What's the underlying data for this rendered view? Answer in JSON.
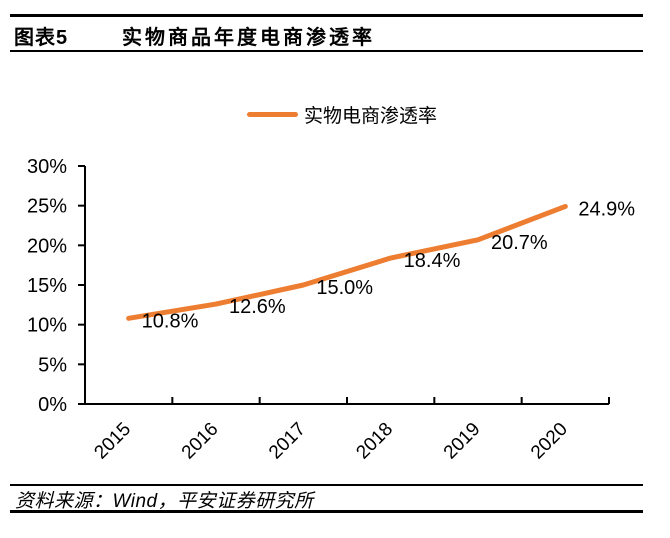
{
  "header": {
    "figure_label": "图表5",
    "title": "实物商品年度电商渗透率"
  },
  "chart_data": {
    "type": "line",
    "title": "实物商品年度电商渗透率",
    "categories": [
      "2015",
      "2016",
      "2017",
      "2018",
      "2019",
      "2020"
    ],
    "series": [
      {
        "name": "实物电商渗透率",
        "values": [
          10.8,
          12.6,
          15.0,
          18.4,
          20.7,
          24.9
        ],
        "labels": [
          "10.8%",
          "12.6%",
          "15.0%",
          "18.4%",
          "20.7%",
          "24.9%"
        ],
        "color": "#ED7D31"
      }
    ],
    "xlabel": "",
    "ylabel": "",
    "ylim": [
      0,
      30
    ],
    "yticks": [
      {
        "value": 0,
        "label": "0%"
      },
      {
        "value": 5,
        "label": "5%"
      },
      {
        "value": 10,
        "label": "10%"
      },
      {
        "value": 15,
        "label": "15%"
      },
      {
        "value": 20,
        "label": "20%"
      },
      {
        "value": 25,
        "label": "25%"
      },
      {
        "value": 30,
        "label": "30%"
      }
    ],
    "grid": false,
    "legend_position": "top"
  },
  "footer": {
    "source": "资料来源：Wind，平安证券研究所"
  },
  "colors": {
    "accent": "#ED7D31",
    "text": "#000000",
    "rule": "#000000"
  }
}
